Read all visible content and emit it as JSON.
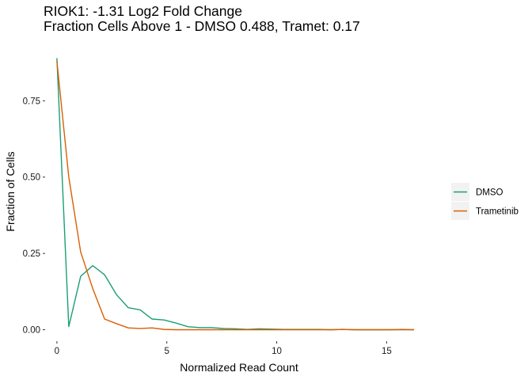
{
  "chart_data": {
    "type": "line",
    "title": "RIOK1: -1.31 Log2 Fold Change",
    "subtitle": "Fraction Cells Above 1 - DMSO 0.488, Tramet: 0.17",
    "xlabel": "Normalized Read Count",
    "ylabel": "Fraction of Cells",
    "xlim": [
      -0.5,
      16.5
    ],
    "ylim": [
      -0.035,
      0.935
    ],
    "xticks": [
      0,
      5,
      10,
      15
    ],
    "xtick_labels": [
      "0",
      "5",
      "10",
      "15"
    ],
    "yticks": [
      0,
      0.25,
      0.5,
      0.75
    ],
    "ytick_labels": [
      "0.00",
      "0.25",
      "0.50",
      "0.75"
    ],
    "grid": false,
    "legend_position": "right",
    "series": [
      {
        "name": "DMSO",
        "color": "#1b9e77",
        "x": [
          0,
          0.54,
          1.08,
          1.63,
          2.17,
          2.71,
          3.25,
          3.79,
          4.33,
          4.88,
          5.42,
          5.96,
          6.5,
          7.04,
          7.58,
          8.13,
          8.67,
          9.21,
          9.75,
          10.29,
          10.83,
          11.38,
          11.92,
          12.46,
          13.0,
          13.54,
          14.08,
          14.63,
          15.17,
          15.71,
          16.25
        ],
        "y": [
          0.89,
          0.01,
          0.175,
          0.21,
          0.18,
          0.115,
          0.072,
          0.065,
          0.035,
          0.032,
          0.022,
          0.01,
          0.007,
          0.007,
          0.004,
          0.003,
          0.001,
          0.003,
          0.002,
          0.001,
          0.001,
          0.001,
          0.001,
          0.0,
          0.001,
          0.0,
          0.0,
          0.0,
          0.0,
          0.0,
          0.0
        ]
      },
      {
        "name": "Trametinib",
        "color": "#d95f02",
        "x": [
          0,
          0.54,
          1.08,
          1.63,
          2.17,
          2.71,
          3.25,
          3.79,
          4.33,
          4.88,
          5.42,
          5.96,
          6.5,
          7.04,
          7.58,
          8.13,
          8.67,
          9.21,
          9.75,
          10.29,
          10.83,
          11.38,
          11.92,
          12.46,
          13.0,
          13.54,
          14.08,
          14.63,
          15.17,
          15.71,
          16.25
        ],
        "y": [
          0.88,
          0.5,
          0.255,
          0.135,
          0.035,
          0.02,
          0.006,
          0.004,
          0.006,
          0.001,
          0.0,
          0.0,
          0.0,
          0.0,
          0.0,
          0.0,
          0.0,
          0.0,
          0.0,
          0.0,
          0.0,
          0.0,
          0.0,
          0.0,
          0.001,
          0.0,
          0.0,
          0.0,
          0.0,
          0.001,
          0.0
        ]
      }
    ]
  }
}
